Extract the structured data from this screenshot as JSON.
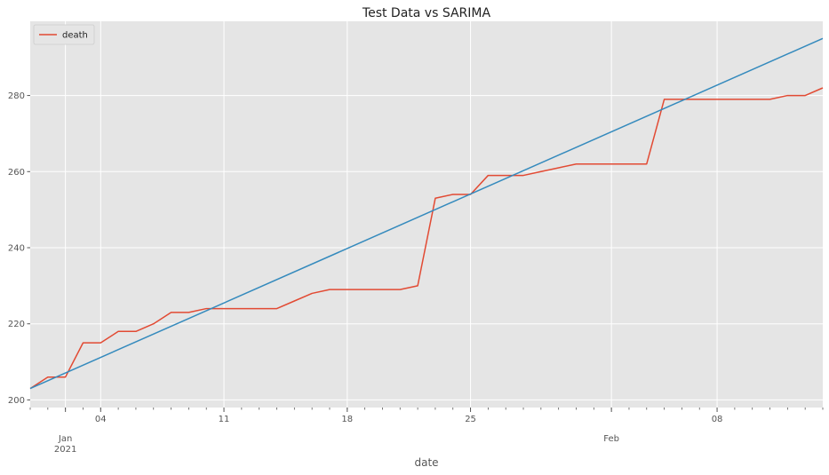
{
  "chart_data": {
    "type": "line",
    "title": "Test Data vs SARIMA",
    "xlabel": "date",
    "ylabel": "",
    "ylim": [
      198,
      299.5
    ],
    "xlim": [
      "2020-12-31",
      "2021-02-14"
    ],
    "grid": true,
    "legend_position": "top-left",
    "y_ticks": [
      200,
      220,
      240,
      260,
      280
    ],
    "x_major_ticks": [
      {
        "date": "2021-01-04",
        "label": "04"
      },
      {
        "date": "2021-01-11",
        "label": "11"
      },
      {
        "date": "2021-01-18",
        "label": "18"
      },
      {
        "date": "2021-01-25",
        "label": "25"
      },
      {
        "date": "2021-02-08",
        "label": "08"
      }
    ],
    "x_month_ticks": [
      {
        "date": "2021-01-02",
        "label": "Jan",
        "sublabel": "2021"
      },
      {
        "date": "2021-02-02",
        "label": "Feb",
        "sublabel": ""
      }
    ],
    "series": [
      {
        "name": "death",
        "color": "#E24A33",
        "show_in_legend": true,
        "x": [
          "2020-12-31",
          "2021-01-01",
          "2021-01-02",
          "2021-01-03",
          "2021-01-04",
          "2021-01-05",
          "2021-01-06",
          "2021-01-07",
          "2021-01-08",
          "2021-01-09",
          "2021-01-10",
          "2021-01-11",
          "2021-01-12",
          "2021-01-13",
          "2021-01-14",
          "2021-01-15",
          "2021-01-16",
          "2021-01-17",
          "2021-01-18",
          "2021-01-19",
          "2021-01-20",
          "2021-01-21",
          "2021-01-22",
          "2021-01-23",
          "2021-01-24",
          "2021-01-25",
          "2021-01-26",
          "2021-01-27",
          "2021-01-28",
          "2021-01-29",
          "2021-01-30",
          "2021-01-31",
          "2021-02-01",
          "2021-02-02",
          "2021-02-03",
          "2021-02-04",
          "2021-02-05",
          "2021-02-06",
          "2021-02-07",
          "2021-02-08",
          "2021-02-09",
          "2021-02-10",
          "2021-02-11",
          "2021-02-12",
          "2021-02-13",
          "2021-02-14"
        ],
        "values": [
          203,
          206,
          206,
          215,
          215,
          218,
          218,
          220,
          223,
          223,
          224,
          224,
          224,
          224,
          224,
          226,
          228,
          229,
          229,
          229,
          229,
          229,
          230,
          253,
          254,
          254,
          259,
          259,
          259,
          260,
          261,
          262,
          262,
          262,
          262,
          262,
          279,
          279,
          279,
          279,
          279,
          279,
          279,
          280,
          280,
          282
        ]
      },
      {
        "name": "SARIMA",
        "color": "#348ABD",
        "show_in_legend": false,
        "x": [
          "2020-12-31",
          "2021-02-14"
        ],
        "values": [
          203,
          295
        ]
      }
    ]
  }
}
